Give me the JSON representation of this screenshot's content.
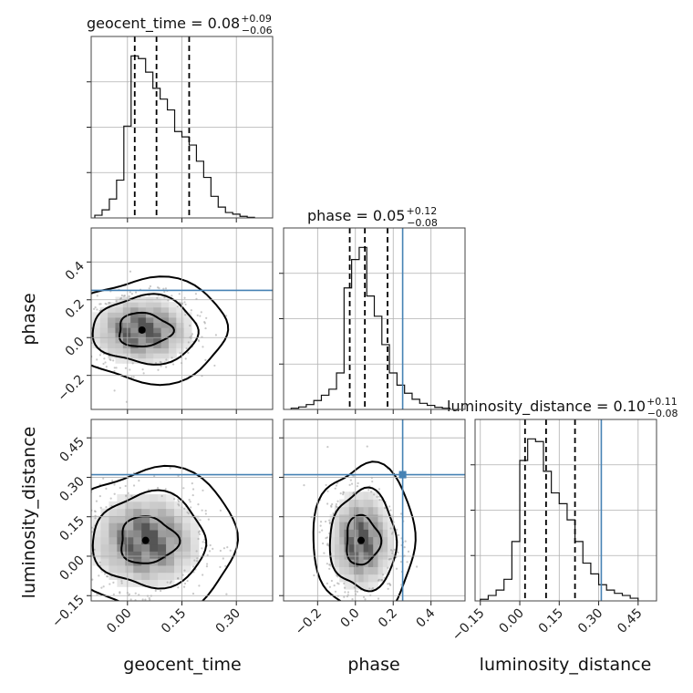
{
  "chart_data": {
    "type": "corner",
    "parameters": [
      "geocent_time",
      "phase",
      "luminosity_distance"
    ],
    "truths": {
      "geocent_time": null,
      "phase": 0.25,
      "luminosity_distance": 0.31
    },
    "truth_color": "#4682b4",
    "grid": true,
    "ranges": {
      "geocent_time": [
        -0.1,
        0.4
      ],
      "phase": [
        -0.38,
        0.58
      ],
      "luminosity_distance": [
        -0.17,
        0.52
      ]
    },
    "ticks": {
      "geocent_time": {
        "values": [
          0.0,
          0.15,
          0.3
        ],
        "labels": [
          "0.00",
          "0.15",
          "0.30"
        ]
      },
      "phase_x": {
        "values": [
          -0.2,
          0.0,
          0.2,
          0.4
        ],
        "labels": [
          "−0.2",
          "0.0",
          "0.2",
          "0.4"
        ]
      },
      "phase_y": {
        "values": [
          -0.2,
          0.0,
          0.2,
          0.4
        ],
        "labels": [
          "−0.2",
          "0.0",
          "0.2",
          "0.4"
        ]
      },
      "luminosity_distance": {
        "values": [
          -0.15,
          0.0,
          0.15,
          0.3,
          0.45
        ],
        "labels": [
          "−0.15",
          "0.00",
          "0.15",
          "0.30",
          "0.45"
        ]
      }
    },
    "axis_labels": {
      "geocent_time": "geocent_time",
      "phase": "phase",
      "luminosity_distance": "luminosity_distance"
    },
    "titles": [
      {
        "param": "geocent_time",
        "text": "geocent_time = 0.08",
        "sup": "+0.09",
        "sub": "−0.06"
      },
      {
        "param": "phase",
        "text": "phase = 0.05",
        "sup": "+0.12",
        "sub": "−0.08"
      },
      {
        "param": "luminosity_distance",
        "text": "luminosity_distance = 0.10",
        "sup": "+0.11",
        "sub": "−0.08"
      }
    ],
    "marginals": {
      "geocent_time": {
        "bin_edges": [
          -0.09,
          -0.07,
          -0.05,
          -0.03,
          -0.01,
          0.01,
          0.03,
          0.05,
          0.07,
          0.09,
          0.11,
          0.13,
          0.15,
          0.17,
          0.19,
          0.21,
          0.23,
          0.25,
          0.27,
          0.29,
          0.31,
          0.33,
          0.35
        ],
        "counts": [
          0.5,
          1.5,
          3.5,
          7,
          17,
          30,
          29.5,
          27,
          24,
          22,
          20,
          16,
          15,
          13.5,
          10.5,
          7.5,
          4,
          2,
          1,
          0.7,
          0.3,
          0.1
        ],
        "quantiles": [
          0.02,
          0.08,
          0.17
        ]
      },
      "phase": {
        "bin_edges": [
          -0.34,
          -0.3,
          -0.26,
          -0.22,
          -0.18,
          -0.14,
          -0.1,
          -0.06,
          -0.02,
          0.02,
          0.06,
          0.1,
          0.14,
          0.18,
          0.22,
          0.26,
          0.3,
          0.34,
          0.38,
          0.42,
          0.46,
          0.5
        ],
        "counts": [
          0.3,
          0.6,
          1.2,
          2.2,
          3.5,
          5,
          9,
          30,
          37,
          40,
          28,
          23,
          16,
          9,
          6,
          4,
          2.5,
          1.5,
          1,
          0.5,
          0.3
        ],
        "quantiles": [
          -0.03,
          0.05,
          0.17
        ]
      },
      "luminosity_distance": {
        "bin_edges": [
          -0.15,
          -0.12,
          -0.09,
          -0.06,
          -0.03,
          0.0,
          0.03,
          0.06,
          0.09,
          0.12,
          0.15,
          0.18,
          0.21,
          0.24,
          0.27,
          0.3,
          0.33,
          0.36,
          0.39,
          0.42,
          0.45
        ],
        "counts": [
          0.3,
          1,
          2,
          4,
          11,
          26,
          30,
          29.5,
          24,
          20,
          18,
          15,
          11,
          7,
          5,
          3,
          2,
          1.4,
          1,
          0.5
        ],
        "quantiles": [
          0.02,
          0.1,
          0.21
        ]
      }
    },
    "pairs": [
      {
        "x": "geocent_time",
        "y": "phase",
        "peak": [
          0.04,
          0.04
        ],
        "sd": [
          0.07,
          0.09
        ],
        "levels": [
          0.39,
          0.86,
          0.99
        ],
        "truth_y": 0.25
      },
      {
        "x": "geocent_time",
        "y": "luminosity_distance",
        "peak": [
          0.05,
          0.06
        ],
        "sd": [
          0.075,
          0.09
        ],
        "levels": [
          0.39,
          0.86,
          0.99
        ],
        "truth_y": 0.31
      },
      {
        "x": "phase",
        "y": "luminosity_distance",
        "peak": [
          0.03,
          0.06
        ],
        "sd": [
          0.085,
          0.095
        ],
        "levels": [
          0.39,
          0.86,
          0.99
        ],
        "truth_x": 0.25,
        "truth_y": 0.31
      }
    ]
  }
}
